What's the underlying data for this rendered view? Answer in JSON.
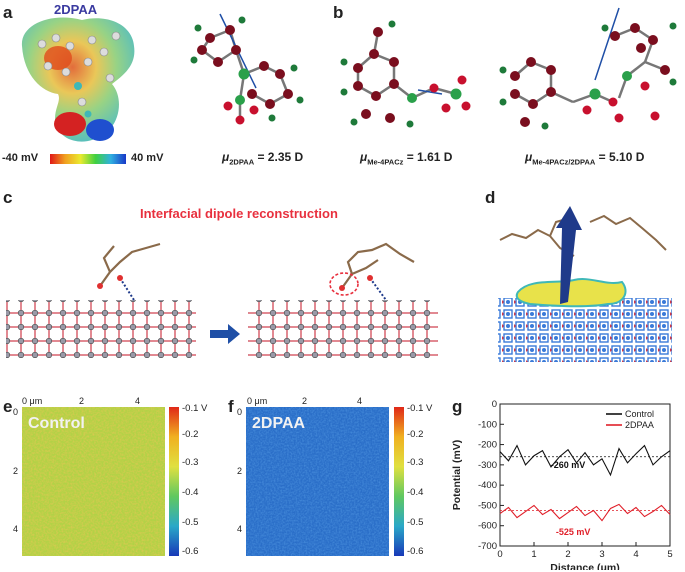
{
  "panels": {
    "a": {
      "label": "a",
      "molecule_title": "2DPAA",
      "scale_min": "-40 mV",
      "scale_max": "40 mV",
      "dipole": {
        "mu": "μ",
        "sub": "2DPAA",
        "value": "= 2.35 D"
      }
    },
    "b": {
      "label": "b",
      "dipole1": {
        "mu": "μ",
        "sub": "Me-4PACz",
        "value": "= 1.61 D"
      },
      "dipole2": {
        "mu": "μ",
        "sub": "Me-4PACz/2DPAA",
        "value": "= 5.10 D"
      }
    },
    "c": {
      "label": "c",
      "title": "Interfacial dipole reconstruction"
    },
    "d": {
      "label": "d"
    },
    "e": {
      "label": "e",
      "map_title": "Control",
      "unit_label": "0 μm",
      "x_ticks": [
        "2",
        "4"
      ],
      "y_ticks": [
        "0",
        "2",
        "4"
      ],
      "colorbar_ticks": [
        "-0.1 V",
        "-0.2",
        "-0.3",
        "-0.4",
        "-0.5",
        "-0.6"
      ]
    },
    "f": {
      "label": "f",
      "map_title": "2DPAA",
      "unit_label": "0 μm",
      "x_ticks": [
        "2",
        "4"
      ],
      "y_ticks": [
        "0",
        "2",
        "4"
      ],
      "colorbar_ticks": [
        "-0.1 V",
        "-0.2",
        "-0.3",
        "-0.4",
        "-0.5",
        "-0.6"
      ]
    },
    "g": {
      "label": "g"
    }
  },
  "colors": {
    "control_line": "#111111",
    "dpaa_line": "#e0202a",
    "annotation_red": "#e8303e",
    "arrow_blue": "#1f4fa6"
  },
  "chart_data": {
    "type": "line",
    "title": "",
    "xlabel": "Distance (μm)",
    "ylabel": "Potential (mV)",
    "xlim": [
      0,
      5
    ],
    "ylim": [
      -700,
      0
    ],
    "x_ticks": [
      0,
      1,
      2,
      3,
      4,
      5
    ],
    "x_tick_labels": [
      "0",
      "1",
      "2",
      "3",
      "4",
      "5"
    ],
    "y_ticks": [
      0,
      -100,
      -200,
      -300,
      -400,
      -500,
      -600,
      -700
    ],
    "y_tick_labels": [
      "0",
      "-100",
      "-200",
      "-300",
      "-400",
      "-500",
      "-600",
      "-700"
    ],
    "legend_position": "top-right",
    "series": [
      {
        "name": "Control",
        "color": "#111111",
        "mean": -260,
        "x": [
          0,
          0.25,
          0.5,
          0.75,
          1,
          1.25,
          1.5,
          1.75,
          2,
          2.25,
          2.5,
          2.75,
          3,
          3.25,
          3.5,
          3.75,
          4,
          4.25,
          4.5,
          4.75,
          5
        ],
        "values": [
          -235,
          -280,
          -205,
          -300,
          -255,
          -230,
          -310,
          -260,
          -225,
          -290,
          -240,
          -300,
          -270,
          -350,
          -220,
          -290,
          -245,
          -205,
          -300,
          -260,
          -230
        ]
      },
      {
        "name": "2DPAA",
        "color": "#e0202a",
        "mean": -525,
        "x": [
          0,
          0.25,
          0.5,
          0.75,
          1,
          1.25,
          1.5,
          1.75,
          2,
          2.25,
          2.5,
          2.75,
          3,
          3.25,
          3.5,
          3.75,
          4,
          4.25,
          4.5,
          4.75,
          5
        ],
        "values": [
          -540,
          -510,
          -560,
          -530,
          -500,
          -545,
          -520,
          -565,
          -535,
          -505,
          -550,
          -525,
          -575,
          -515,
          -495,
          -540,
          -510,
          -555,
          -530,
          -500,
          -545
        ]
      }
    ],
    "annotations": [
      {
        "text": "-260 mV",
        "x": 2.0,
        "y": -315,
        "color": "#111111"
      },
      {
        "text": "-525 mV",
        "x": 2.15,
        "y": -645,
        "color": "#e0202a"
      }
    ]
  }
}
